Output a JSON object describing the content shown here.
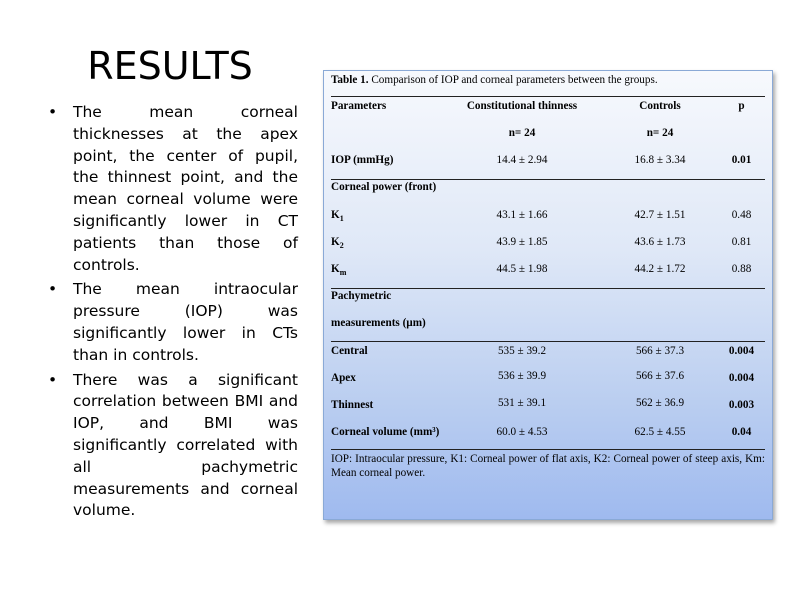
{
  "slide": {
    "title": "RESULTS",
    "bullets": [
      "The mean corneal thicknesses at the apex point, the center of pupil, the thinnest point, and the mean corneal volume were significantly lower in CT patients than those of controls.",
      "The mean intraocular pressure (IOP) was significantly lower in CTs than in controls.",
      "There was a significant correlation between BMI and IOP, and BMI was significantly correlated with all pachymetric measurements and corneal volume."
    ]
  },
  "table": {
    "caption_label": "Table 1.",
    "caption_text": " Comparison of IOP and corneal parameters between the groups.",
    "headers": {
      "parameters": "Parameters",
      "group1": "Constitutional thinness",
      "group2": "Controls",
      "p": "p",
      "n1": "n= 24",
      "n2": "n= 24"
    },
    "rows": [
      {
        "param": "IOP (mmHg)",
        "g1": "14.4 ± 2.94",
        "g2": "16.8 ± 3.34",
        "p": "0.01"
      },
      {
        "section": "Corneal power (front)"
      },
      {
        "param": "K1",
        "g1": "43.1 ± 1.66",
        "g2": "42.7 ± 1.51",
        "p": "0.48"
      },
      {
        "param": "K2",
        "g1": "43.9 ± 1.85",
        "g2": "43.6 ± 1.73",
        "p": "0.81"
      },
      {
        "param": "Km",
        "g1": "44.5 ± 1.98",
        "g2": "44.2 ± 1.72",
        "p": "0.88"
      },
      {
        "section": "Pachymetric",
        "section2": "measurements (µm)"
      },
      {
        "param": "Central",
        "g1": "535 ± 39.2",
        "g2": "566 ± 37.3",
        "p": "0.004"
      },
      {
        "param": "Apex",
        "g1": "536 ± 39.9",
        "g2": "566 ± 37.6",
        "p": "0.004"
      },
      {
        "param": "Thinnest",
        "g1": "531 ± 39.1",
        "g2": "562 ± 36.9",
        "p": "0.003"
      },
      {
        "param": "Corneal volume (mm³)",
        "g1": "60.0 ± 4.53",
        "g2": "62.5 ± 4.55",
        "p": "0.04"
      }
    ],
    "footnote": "IOP: Intraocular pressure, K1: Corneal power of flat axis, K2: Corneal power of steep axis, Km: Mean corneal power."
  }
}
